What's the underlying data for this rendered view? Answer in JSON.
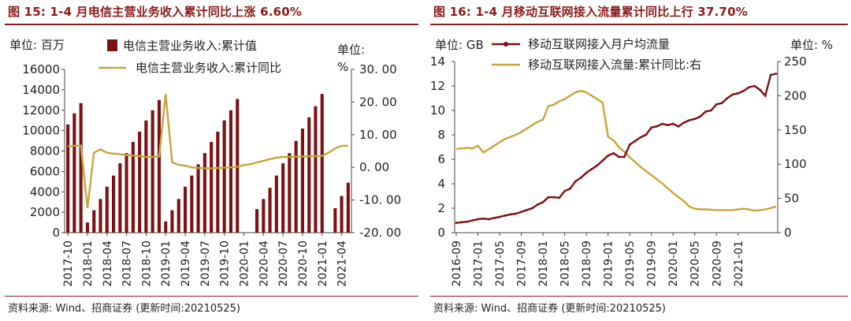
{
  "chart_data": [
    {
      "type": "bar+line",
      "title": "图 15: 1-4 月电信主营业务收入累计同比上涨 6.60%",
      "left_unit": "单位: 百万",
      "right_unit_line1": "单位:",
      "right_unit_line2": "%",
      "legend": [
        "电信主营业务收入:累计值",
        "电信主营业务收入:累计同比"
      ],
      "left_ylim": [
        0,
        16000
      ],
      "left_ticks": [
        "0",
        "2000",
        "4000",
        "6000",
        "8000",
        "10000",
        "12000",
        "14000",
        "16000"
      ],
      "right_ylim": [
        -20,
        30
      ],
      "right_ticks": [
        "-20. 00",
        "-10. 00",
        "0. 00",
        "10. 00",
        "20. 00",
        "30. 00"
      ],
      "x_start": "2017-10",
      "x_ticks": [
        "2017-10",
        "2018-01",
        "2018-04",
        "2018-07",
        "2018-10",
        "2019-01",
        "2019-04",
        "2019-07",
        "2019-10",
        "2020-01",
        "2020-04",
        "2020-07",
        "2020-10",
        "2021-01",
        "2021-04"
      ],
      "series": [
        {
          "name": "电信主营业务收入:累计值",
          "kind": "bar",
          "axis": "left",
          "color": "#7b1113",
          "values": [
            10600,
            11700,
            12700,
            1000,
            2200,
            3300,
            4500,
            5600,
            6800,
            7800,
            8900,
            9900,
            11000,
            12000,
            13000,
            1100,
            2200,
            3300,
            4500,
            5600,
            6700,
            7800,
            8900,
            9900,
            11000,
            12000,
            13100,
            null,
            null,
            2300,
            3300,
            4400,
            5600,
            6800,
            7800,
            9000,
            10200,
            11300,
            12400,
            13600,
            null,
            2400,
            3600,
            4900
          ]
        },
        {
          "name": "电信主营业务收入:累计同比",
          "kind": "line",
          "axis": "right",
          "color": "#c8a43c",
          "values": [
            6.5,
            6.6,
            6.7,
            -12.5,
            4.5,
            5.5,
            4.5,
            4.2,
            4.0,
            3.8,
            3.6,
            3.4,
            3.2,
            3.2,
            3.3,
            22.5,
            1.5,
            0.8,
            0.5,
            0.0,
            -0.2,
            -0.3,
            -0.3,
            -0.2,
            -0.1,
            0.0,
            0.2,
            0.7,
            1.0,
            1.5,
            2.0,
            2.5,
            3.0,
            3.2,
            3.2,
            3.3,
            3.3,
            3.4,
            3.4,
            3.5,
            4.5,
            5.8,
            6.6,
            6.6
          ]
        }
      ],
      "source": "资料来源: Wind、招商证券 (更新时间:20210525)"
    },
    {
      "type": "line",
      "title": "图 16: 1-4 月移动互联网接入流量累计同比上行 37.70%",
      "left_unit": "单位: GB",
      "right_unit": "单位: %",
      "legend": [
        "移动互联网接入月户均流量",
        "移动互联网接入流量:累计同比:右"
      ],
      "left_ylim": [
        0,
        14
      ],
      "left_ticks": [
        "0",
        "2",
        "4",
        "6",
        "8",
        "10",
        "12",
        "14"
      ],
      "right_ylim": [
        0,
        250
      ],
      "right_ticks": [
        "0",
        "50",
        "100",
        "150",
        "200",
        "250"
      ],
      "x_start": "2016-09",
      "x_ticks": [
        "2016-09",
        "2017-01",
        "2017-05",
        "2017-09",
        "2018-01",
        "2018-05",
        "2018-09",
        "2019-01",
        "2019-05",
        "2019-09",
        "2020-01",
        "2020-05",
        "2020-09",
        "2021-01"
      ],
      "series": [
        {
          "name": "移动互联网接入月户均流量",
          "axis": "left",
          "color": "#7b1113",
          "values": [
            0.8,
            0.85,
            0.9,
            1.0,
            1.1,
            1.15,
            1.1,
            1.2,
            1.3,
            1.4,
            1.5,
            1.55,
            1.7,
            1.85,
            2.0,
            2.3,
            2.5,
            2.9,
            2.9,
            2.85,
            3.4,
            3.6,
            4.2,
            4.5,
            4.9,
            5.2,
            5.5,
            5.9,
            6.3,
            6.5,
            6.2,
            6.2,
            7.2,
            7.5,
            7.8,
            8.0,
            8.6,
            8.7,
            8.9,
            8.8,
            8.9,
            8.7,
            9.0,
            9.2,
            9.3,
            9.5,
            9.9,
            10.0,
            10.5,
            10.6,
            11.0,
            11.3,
            11.4,
            11.6,
            11.9,
            12.0,
            11.7,
            11.2,
            12.9,
            13.0
          ]
        },
        {
          "name": "移动互联网接入流量:累计同比:右",
          "axis": "right",
          "color": "#c8a43c",
          "values": [
            122,
            123,
            124,
            123,
            127,
            117,
            122,
            127,
            132,
            137,
            140,
            143,
            147,
            152,
            157,
            162,
            165,
            185,
            187,
            192,
            195,
            200,
            205,
            207,
            205,
            200,
            195,
            190,
            140,
            135,
            125,
            118,
            110,
            103,
            96,
            90,
            84,
            78,
            72,
            65,
            58,
            52,
            46,
            38,
            35,
            34,
            34,
            33.5,
            33,
            33,
            33,
            33,
            34,
            35,
            34,
            32,
            33,
            34,
            36,
            38
          ]
        }
      ],
      "source": "资料来源: Wind、招商证券 (更新时间:20210525)"
    }
  ]
}
